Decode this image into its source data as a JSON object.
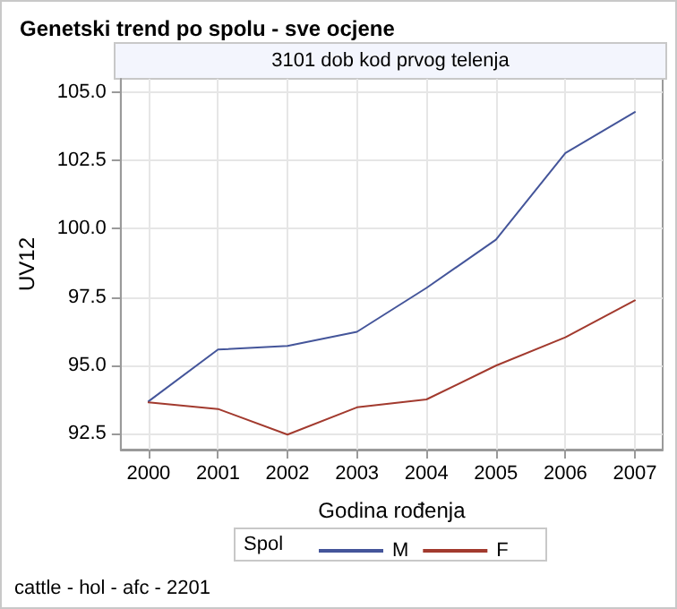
{
  "chart_data": {
    "type": "line",
    "title": "Genetski trend po spolu - sve ocjene",
    "subtitle": "3101 dob kod prvog telenja",
    "xlabel": "Godina rođenja",
    "ylabel": "UV12",
    "legend_title": "Spol",
    "annotations": [
      "cattle - hol - afc - 2201"
    ],
    "x": [
      2000,
      2001,
      2002,
      2003,
      2004,
      2005,
      2006,
      2007
    ],
    "series": [
      {
        "name": "M",
        "color": "#44559a",
        "values": [
          93.67,
          95.57,
          95.7,
          96.22,
          97.83,
          99.6,
          102.78,
          104.28
        ]
      },
      {
        "name": "F",
        "color": "#a23a2e",
        "values": [
          93.63,
          93.39,
          92.45,
          93.45,
          93.74,
          94.98,
          96.02,
          97.37
        ]
      }
    ],
    "xlim": [
      1999.6,
      2007.4
    ],
    "xticks": [
      2000,
      2001,
      2002,
      2003,
      2004,
      2005,
      2006,
      2007
    ],
    "ylim": [
      91.9,
      105.5
    ],
    "yticks": [
      {
        "value": 92.5,
        "label": "92.5"
      },
      {
        "value": 95,
        "label": "95.0"
      },
      {
        "value": 97.5,
        "label": "97.5"
      },
      {
        "value": 100,
        "label": "100.0"
      },
      {
        "value": 102.5,
        "label": "102.5"
      },
      {
        "value": 105,
        "label": "105.0"
      }
    ],
    "grid": true,
    "legend": "bottom",
    "marker": "none",
    "line_style": "solid"
  }
}
